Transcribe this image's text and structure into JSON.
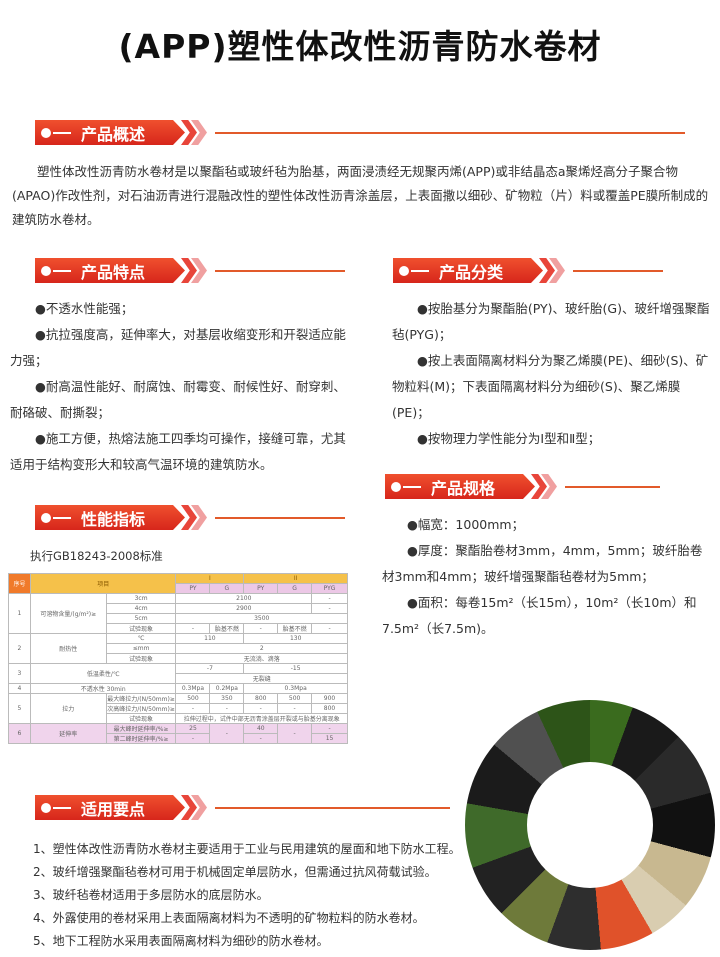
{
  "title": "(APP)塑性体改性沥青防水卷材",
  "overview": {
    "heading": "产品概述",
    "text": "塑性体改性沥青防水卷材是以聚酯毡或玻纤毡为胎基，两面浸渍经无规聚丙烯(APP)或非结晶态a聚烯烃高分子聚合物(APAO)作改性剂，对石油沥青进行混融改性的塑性体改性沥青涂盖层，上表面撒以细砂、矿物粒（片）料或覆盖PE膜所制成的建筑防水卷材。"
  },
  "features": {
    "heading": "产品特点",
    "items": [
      "●不透水性能强；",
      "●抗拉强度高，延伸率大，对基层收缩变形和开裂适应能力强；",
      "●耐高温性能好、耐腐蚀、耐霉变、耐候性好、耐穿刺、耐硌破、耐撕裂；",
      "●施工方便，热熔法施工四季均可操作，接缝可靠，尤其适用于结构变形大和较高气温环境的建筑防水。"
    ]
  },
  "classification": {
    "heading": "产品分类",
    "items": [
      "●按胎基分为聚酯胎(PY)、玻纤胎(G)、玻纤增强聚酯毡(PYG)；",
      "●按上表面隔离材料分为聚乙烯膜(PE)、细砂(S)、矿物粒料(M)；下表面隔离材料分为细砂(S)、聚乙烯膜(PE)；",
      "●按物理力学性能分为I型和Ⅱ型；"
    ]
  },
  "specs": {
    "heading": "产品规格",
    "items": [
      "●幅宽：1000mm；",
      "●厚度：聚酯胎卷材3mm，4mm，5mm；玻纤胎卷材3mm和4mm；玻纤增强聚酯毡卷材为5mm；",
      "●面积：每卷15m²（长15m），10m²（长10m）和7.5m²（长7.5m)。"
    ]
  },
  "performance": {
    "heading": "性能指标",
    "standard": "执行GB18243-2008标准",
    "table": {
      "h": [
        "序号",
        "项目",
        "I",
        "II",
        "PY",
        "G",
        "PY",
        "G",
        "PYG"
      ],
      "r1": [
        "1",
        "可溶物含量/(g/m²)≥",
        "3cm",
        "2100",
        "-",
        "4cm",
        "2900",
        "-",
        "5cm",
        "3500",
        "试验现象",
        "-",
        "胎基不燃",
        "-",
        "胎基不燃",
        "-"
      ],
      "r2": [
        "2",
        "耐热性",
        "℃",
        "110",
        "130",
        "≤mm",
        "2",
        "试验现象",
        "无流淌、滴落"
      ],
      "r3": [
        "3",
        "低温柔性/℃",
        "-7",
        "-15",
        "无裂缝"
      ],
      "r4": [
        "4",
        "不透水性 30min",
        "0.3Mpa",
        "0.2Mpa",
        "0.3Mpa"
      ],
      "r5": [
        "5",
        "拉力",
        "最大峰拉力/(N/50mm)≥",
        "500",
        "350",
        "800",
        "500",
        "900",
        "次高峰拉力/(N/50mm)≥",
        "-",
        "-",
        "-",
        "-",
        "800",
        "试验现象",
        "拉伸过程中，试件中部无沥青涂盖层开裂或与胎基分离现象"
      ],
      "r6": [
        "6",
        "延伸率",
        "最大峰时延伸率/%≥",
        "25",
        "-",
        "40",
        "-",
        "-",
        "第二峰时延伸率/%≥",
        "-",
        "-",
        "15"
      ]
    }
  },
  "usage": {
    "heading": "适用要点",
    "items": [
      "1、塑性体改性沥青防水卷材主要适用于工业与民用建筑的屋面和地下防水工程。",
      "2、玻纤增强聚酯毡卷材可用于机械固定单层防水，但需通过抗风荷载试验。",
      "3、玻纤毡卷材适用于多层防水的底层防水。",
      "4、外露使用的卷材采用上表面隔离材料为不透明的矿物粒料的防水卷材。",
      "5、地下工程防水采用表面隔离材料为细砂的防水卷材。"
    ]
  },
  "colors": {
    "accent": "#d7261b",
    "header_yellow": "#f5c14a",
    "row_pink": "#f0d4ec"
  }
}
